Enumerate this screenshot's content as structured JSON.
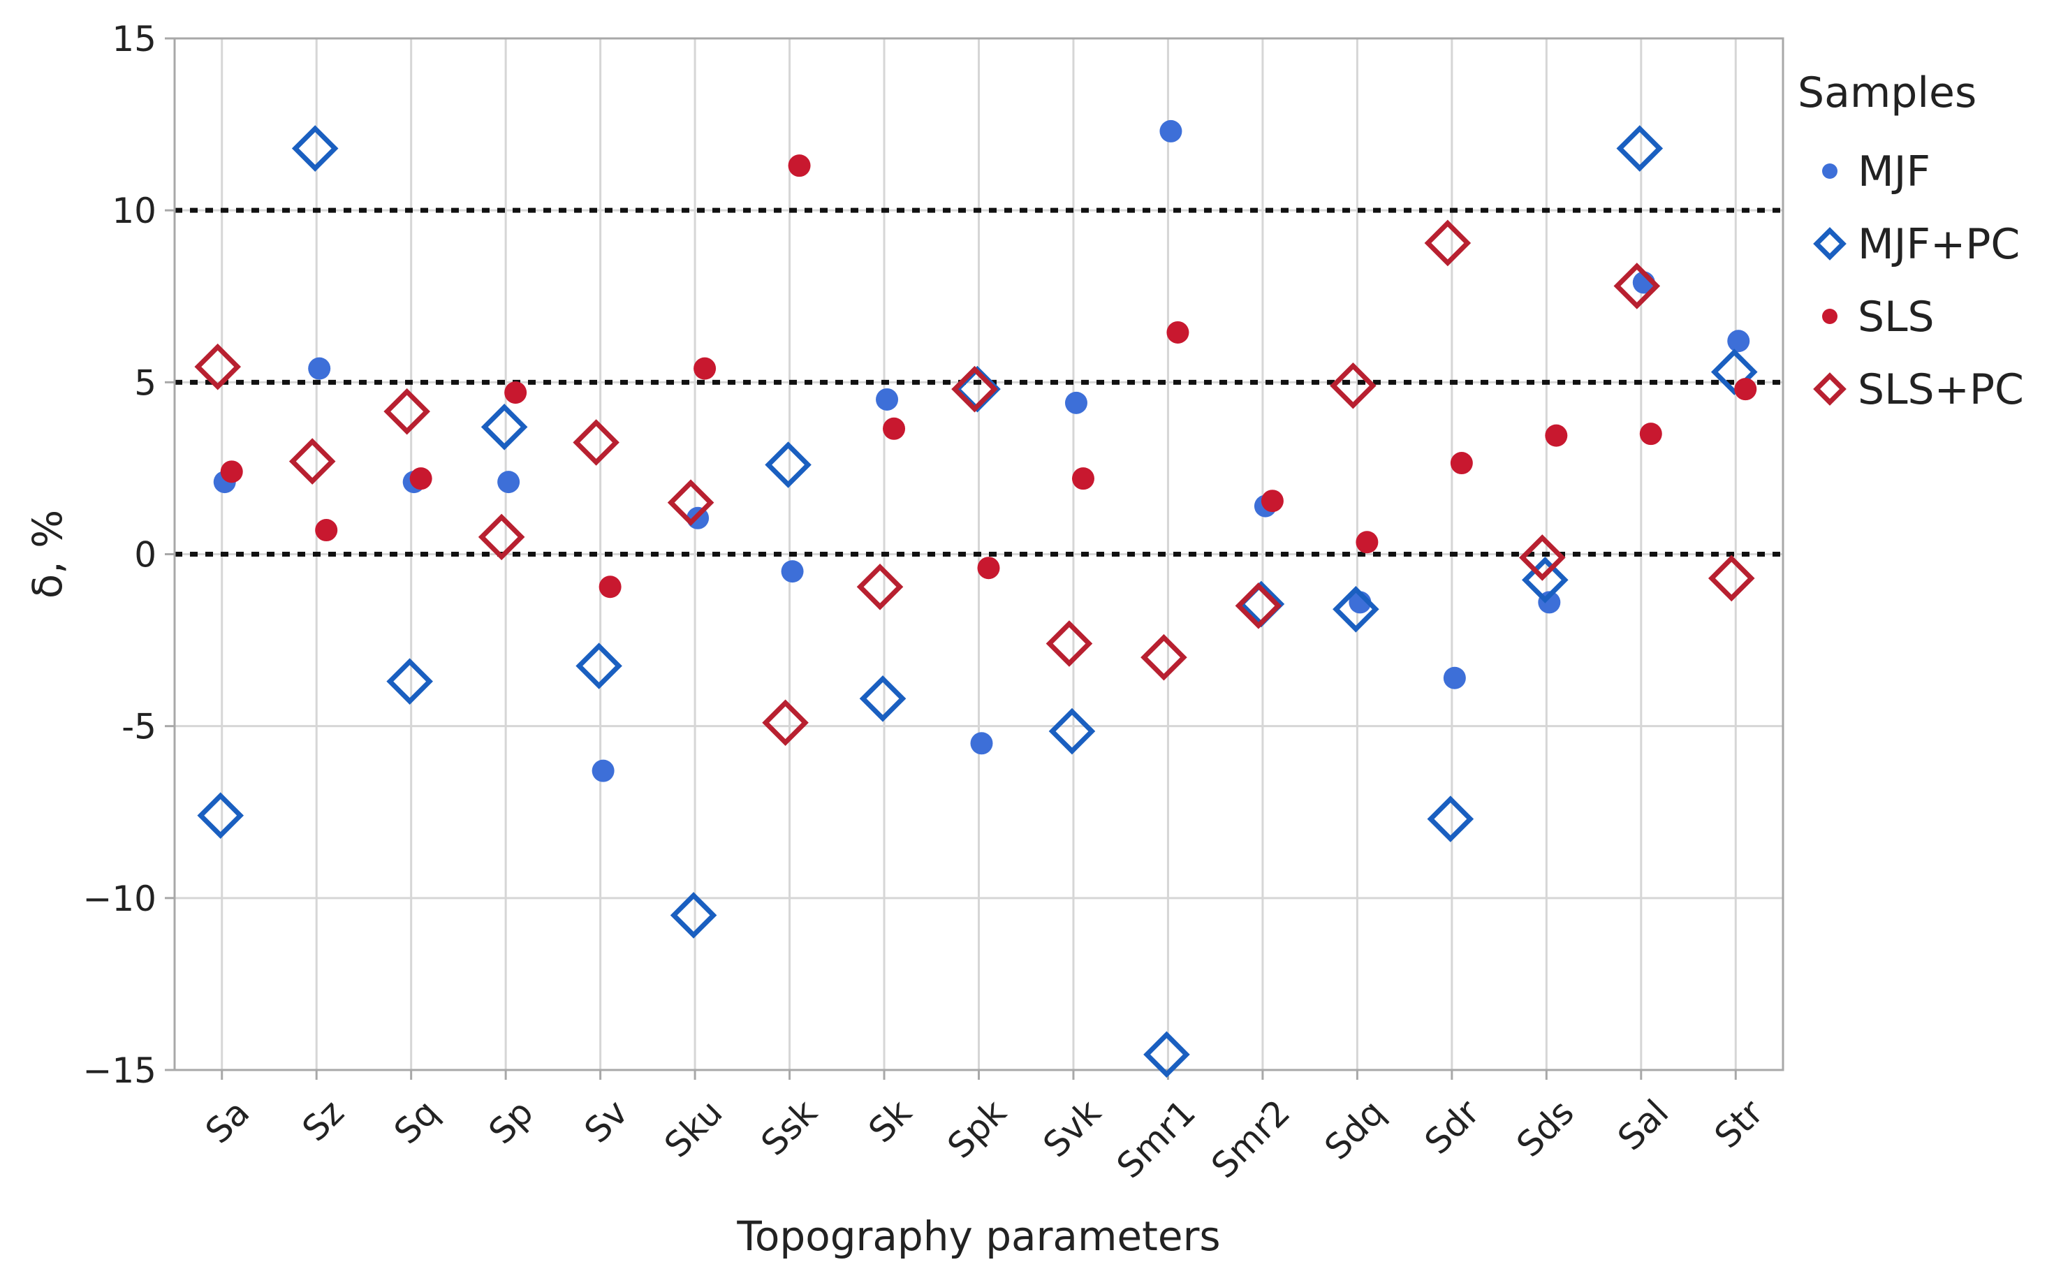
{
  "chart_data": {
    "type": "scatter",
    "title": "",
    "xlabel": "Topography parameters",
    "ylabel": "δ, %",
    "ylim": [
      -15,
      15
    ],
    "yticks": [
      -15,
      -10,
      -5,
      0,
      5,
      10,
      15
    ],
    "ytick_labels": [
      "−15",
      "−10",
      "-5",
      "0",
      "5",
      "10",
      "15"
    ],
    "grid": true,
    "reference_lines": [
      0,
      5,
      10
    ],
    "legend": {
      "title": "Samples",
      "position": "right"
    },
    "categories": [
      "Sa",
      "Sz",
      "Sq",
      "Sp",
      "Sv",
      "Sku",
      "Ssk",
      "Sk",
      "Spk",
      "Svk",
      "Smr1",
      "Smr2",
      "Sdq",
      "Sdr",
      "Sds",
      "Sal",
      "Str"
    ],
    "series": [
      {
        "name": "MJF",
        "marker": "filled-circle",
        "color": "#3d6fd8",
        "values": [
          2.1,
          5.4,
          2.1,
          2.1,
          -6.3,
          1.05,
          -0.5,
          4.5,
          -5.5,
          4.4,
          12.3,
          1.4,
          -1.4,
          -3.6,
          -1.4,
          7.9,
          6.2
        ]
      },
      {
        "name": "MJF+PC",
        "marker": "open-diamond",
        "color": "#1a5fc0",
        "values": [
          -7.6,
          11.8,
          -3.7,
          3.7,
          -3.25,
          -10.5,
          2.6,
          -4.2,
          4.8,
          -5.15,
          -14.55,
          -1.45,
          -1.6,
          -7.7,
          -0.75,
          11.8,
          5.3
        ]
      },
      {
        "name": "SLS",
        "marker": "filled-circle",
        "color": "#c8182f",
        "values": [
          2.4,
          0.7,
          2.2,
          4.7,
          -0.95,
          5.4,
          11.3,
          3.65,
          -0.4,
          2.2,
          6.45,
          1.55,
          0.35,
          2.65,
          3.45,
          3.5,
          4.8
        ]
      },
      {
        "name": "SLS+PC",
        "marker": "open-diamond",
        "color": "#b82030",
        "values": [
          5.45,
          2.7,
          4.15,
          0.5,
          3.25,
          1.5,
          -4.9,
          -0.95,
          4.8,
          -2.6,
          -3.0,
          -1.5,
          4.9,
          9.05,
          -0.1,
          7.8,
          -0.7
        ]
      }
    ]
  }
}
